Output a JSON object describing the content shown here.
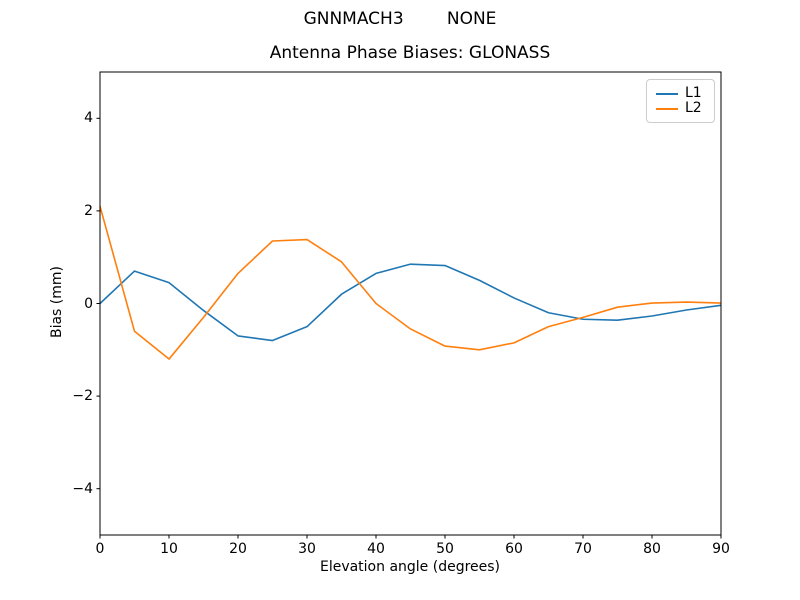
{
  "figure": {
    "suptitle": "GNNMACH3        NONE"
  },
  "chart_data": {
    "type": "line",
    "title": "Antenna Phase Biases: GLONASS",
    "xlabel": "Elevation angle (degrees)",
    "ylabel": "Bias (mm)",
    "x": [
      0,
      5,
      10,
      15,
      20,
      25,
      30,
      35,
      40,
      45,
      50,
      55,
      60,
      65,
      70,
      75,
      80,
      85,
      90
    ],
    "series": [
      {
        "name": "L1",
        "color": "#1f77b4",
        "values": [
          0.0,
          0.7,
          0.45,
          -0.15,
          -0.7,
          -0.8,
          -0.5,
          0.2,
          0.65,
          0.85,
          0.82,
          0.5,
          0.12,
          -0.2,
          -0.34,
          -0.36,
          -0.27,
          -0.14,
          -0.04
        ]
      },
      {
        "name": "L2",
        "color": "#ff7f0e",
        "values": [
          2.1,
          -0.6,
          -1.2,
          -0.3,
          0.65,
          1.35,
          1.38,
          0.9,
          0.0,
          -0.55,
          -0.92,
          -1.0,
          -0.85,
          -0.5,
          -0.3,
          -0.08,
          0.01,
          0.03,
          0.01
        ]
      }
    ],
    "xlim": [
      0,
      90
    ],
    "ylim": [
      -5,
      5
    ],
    "xticks": [
      0,
      10,
      20,
      30,
      40,
      50,
      60,
      70,
      80,
      90
    ],
    "yticks": [
      -4,
      -2,
      0,
      2,
      4
    ],
    "grid": false,
    "legend_position": "upper right",
    "axis_color": "#000000",
    "background_color": "#ffffff"
  }
}
